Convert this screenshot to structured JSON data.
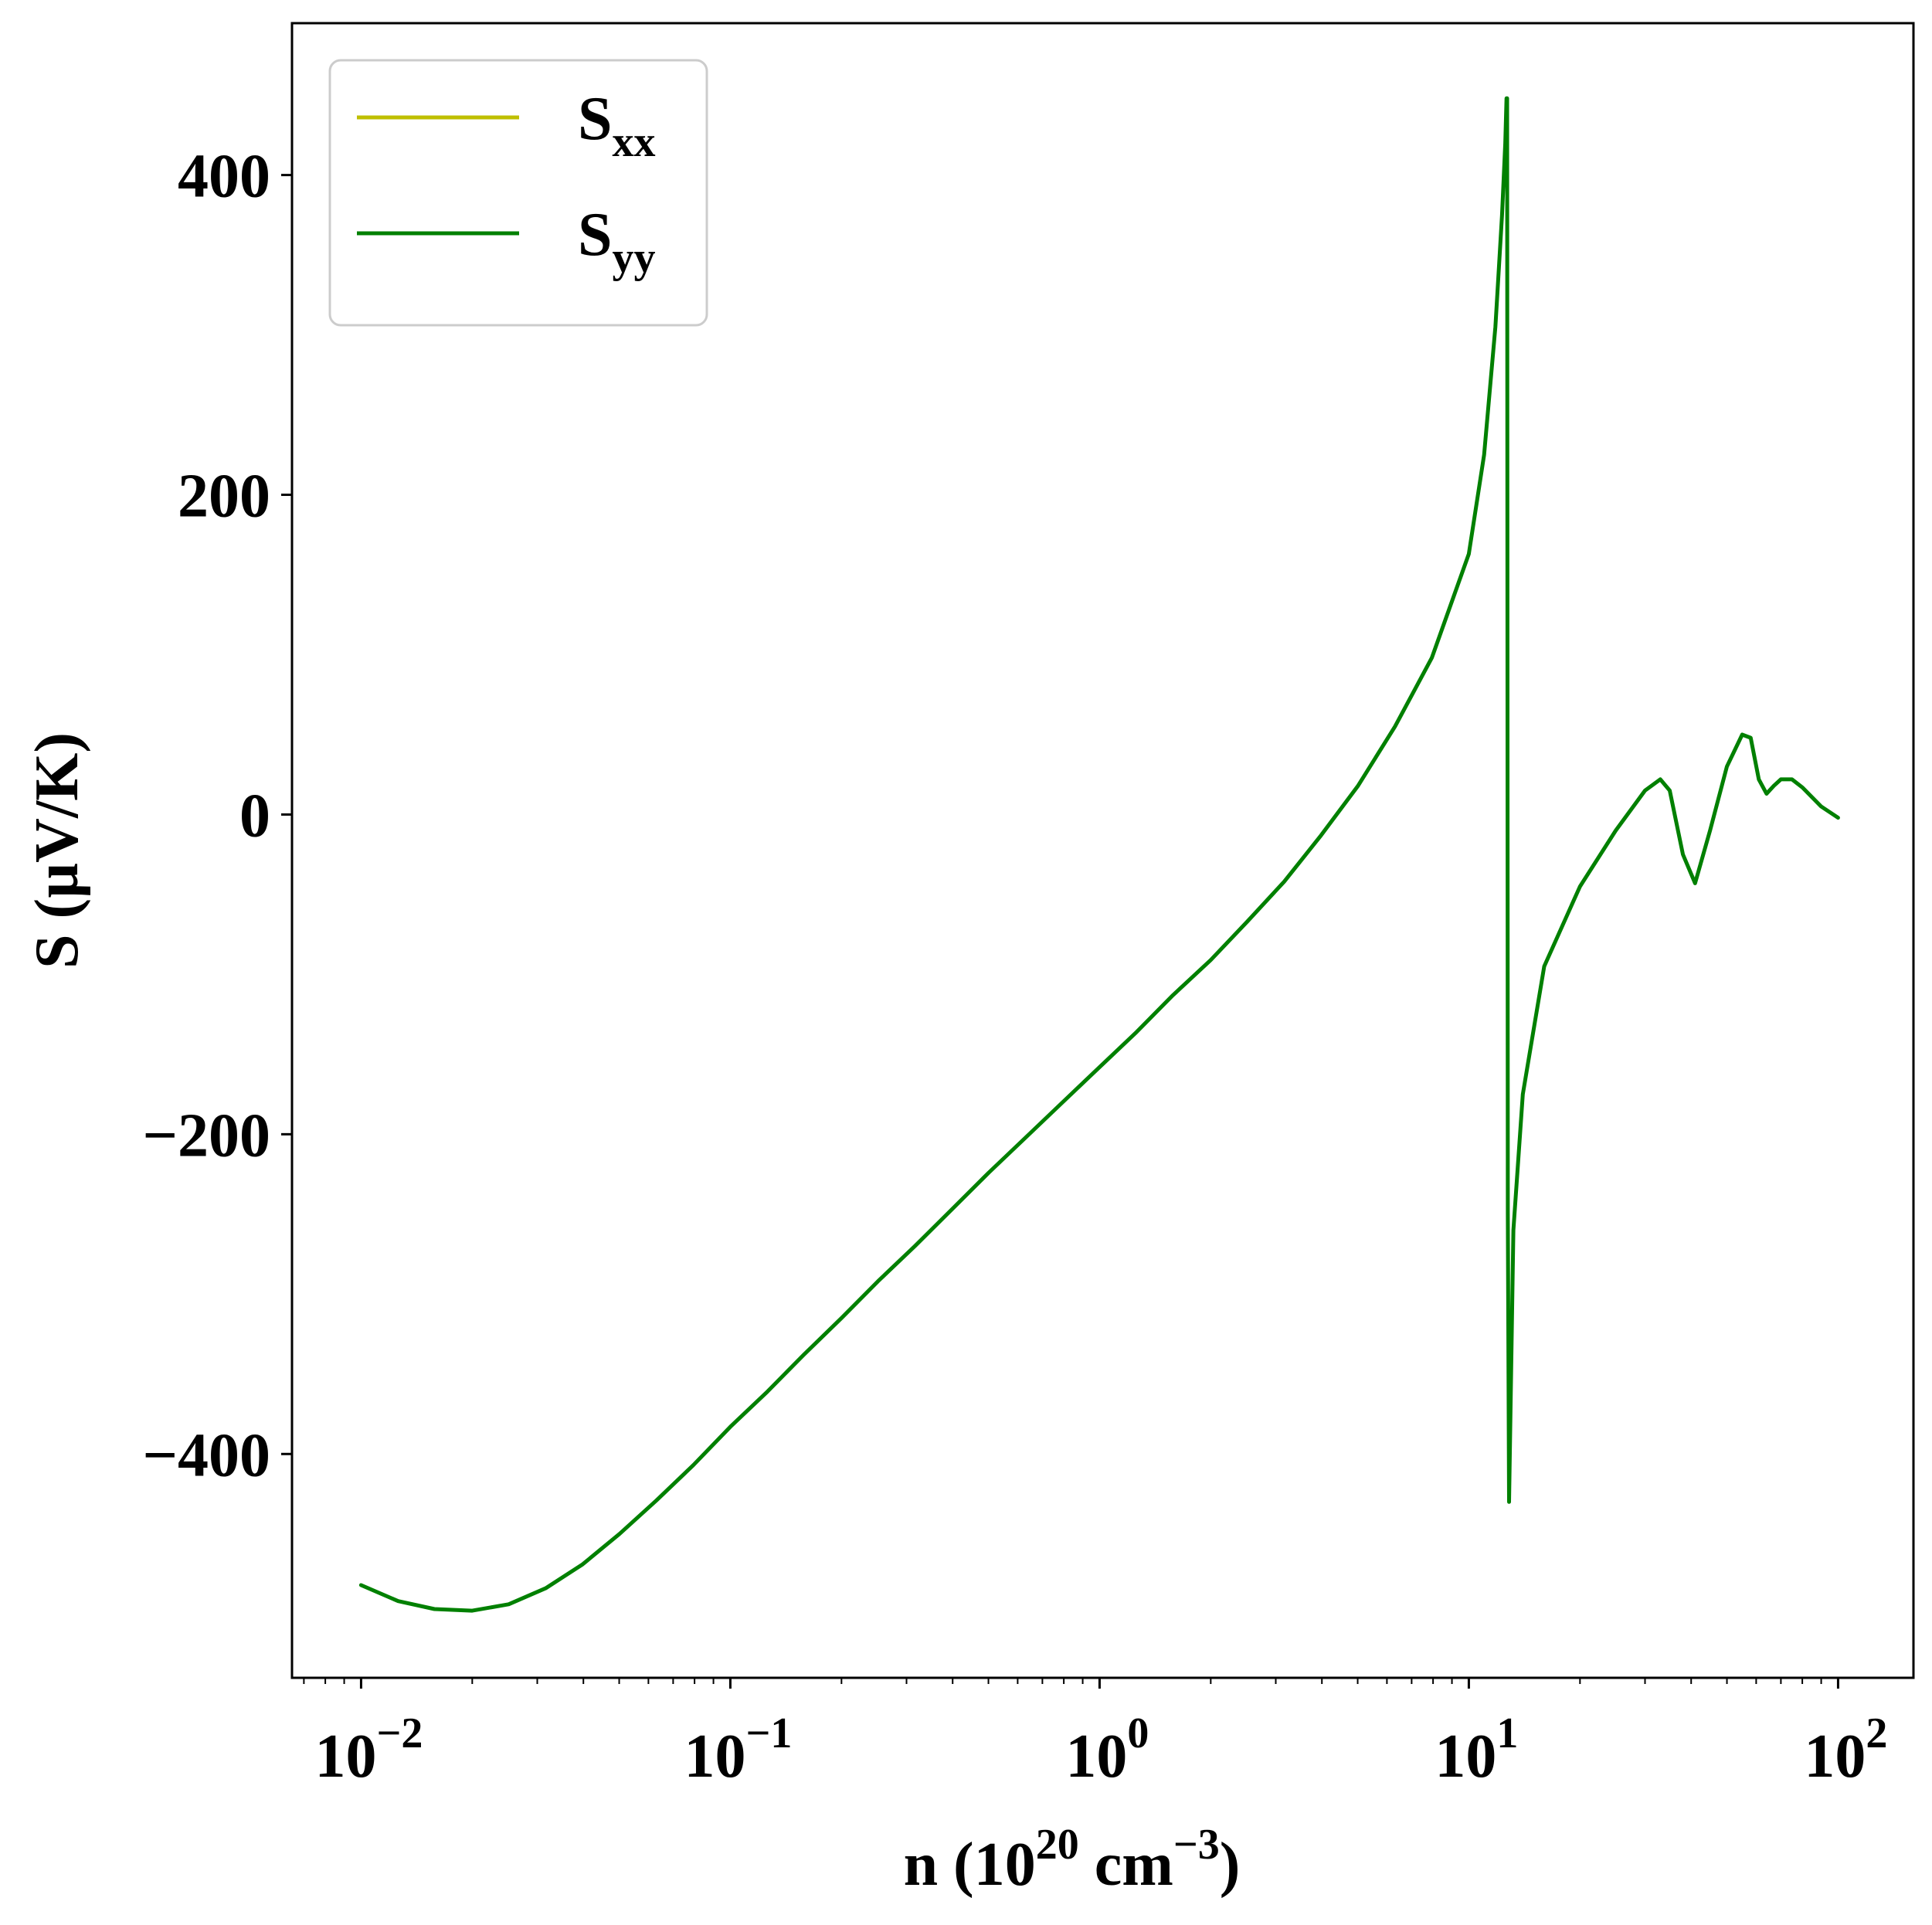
{
  "chart_data": {
    "type": "line",
    "xlabel": "n (10^20 cm^-3)",
    "xlabel_parts": {
      "base": "n (10",
      "exp1": "20",
      "mid": " cm",
      "exp2": "−3",
      "end": ")"
    },
    "ylabel": "S (µV/K)",
    "x_scale": "log",
    "xlim": [
      0.0065,
      160
    ],
    "ylim": [
      -540,
      495
    ],
    "x_ticks": [
      {
        "value": 0.01,
        "base": "10",
        "exp": "−2"
      },
      {
        "value": 0.1,
        "base": "10",
        "exp": "−1"
      },
      {
        "value": 1,
        "base": "10",
        "exp": "0"
      },
      {
        "value": 10,
        "base": "10",
        "exp": "1"
      },
      {
        "value": 100,
        "base": "10",
        "exp": "2"
      }
    ],
    "y_ticks": [
      {
        "value": 400,
        "label": "400"
      },
      {
        "value": 200,
        "label": "200"
      },
      {
        "value": 0,
        "label": "0"
      },
      {
        "value": -200,
        "label": "−200"
      },
      {
        "value": -400,
        "label": "−400"
      }
    ],
    "grid": false,
    "legend_position": "top-left",
    "series": [
      {
        "name": "S_xx",
        "label_base": "S",
        "label_sub": "xx",
        "color": "#bfbf00",
        "x": [],
        "y": []
      },
      {
        "name": "S_yy",
        "label_base": "S",
        "label_sub": "yy",
        "color": "#008000",
        "x": [
          0.01,
          0.0126,
          0.0158,
          0.02,
          0.0251,
          0.0316,
          0.0398,
          0.0501,
          0.0631,
          0.0794,
          0.1,
          0.126,
          0.158,
          0.2,
          0.251,
          0.316,
          0.398,
          0.501,
          0.631,
          0.794,
          1.0,
          1.26,
          1.58,
          2.0,
          2.51,
          3.16,
          3.98,
          5.01,
          6.31,
          7.94,
          10.0,
          11.0,
          11.8,
          12.3,
          12.55,
          12.65,
          12.7,
          12.75,
          12.85,
          13.2,
          14.0,
          16.0,
          20.0,
          25.0,
          30.0,
          33.0,
          35.0,
          38.0,
          41.0,
          45.0,
          50.0,
          55.0,
          58.0,
          61.0,
          64.0,
          67.0,
          70.0,
          75.0,
          80.0,
          90.0,
          100.0
        ],
        "y": [
          -482,
          -492,
          -497,
          -498,
          -494,
          -484,
          -469,
          -450,
          -429,
          -407,
          -383,
          -361,
          -338,
          -315,
          -292,
          -270,
          -247,
          -224,
          -202,
          -180,
          -158,
          -136,
          -113,
          -91,
          -67,
          -42,
          -13,
          18,
          55,
          98,
          163,
          225,
          305,
          375,
          420,
          448,
          448,
          -250,
          -430,
          -260,
          -175,
          -95,
          -45,
          -10,
          15,
          22,
          15,
          -25,
          -43,
          -10,
          30,
          50,
          48,
          22,
          13,
          18,
          22,
          22,
          17,
          5,
          -2
        ]
      }
    ]
  }
}
